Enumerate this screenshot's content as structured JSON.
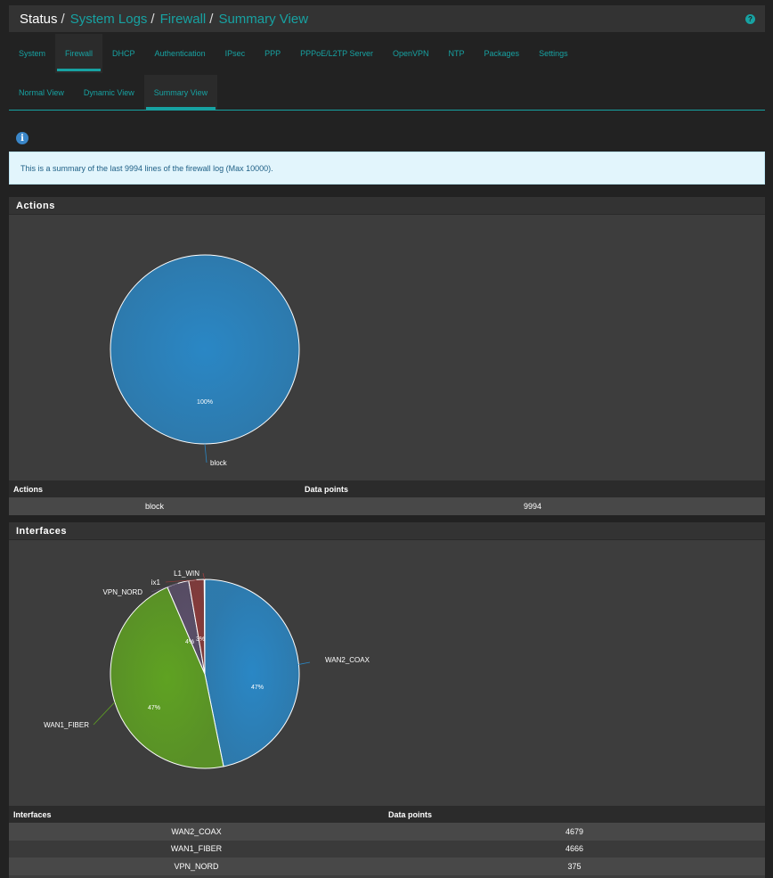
{
  "breadcrumb": {
    "root": "Status",
    "items": [
      "System Logs",
      "Firewall",
      "Summary View"
    ]
  },
  "tabs": [
    "System",
    "Firewall",
    "DHCP",
    "Authentication",
    "IPsec",
    "PPP",
    "PPPoE/L2TP Server",
    "OpenVPN",
    "NTP",
    "Packages",
    "Settings"
  ],
  "active_tab": "Firewall",
  "subtabs": [
    "Normal View",
    "Dynamic View",
    "Summary View"
  ],
  "active_subtab": "Summary View",
  "info_text": "This is a summary of the last 9994 lines of the firewall log (Max 10000).",
  "actions": {
    "title": "Actions",
    "table_headers": [
      "Actions",
      "Data points"
    ],
    "rows": [
      [
        "block",
        "9994"
      ]
    ]
  },
  "interfaces": {
    "title": "Interfaces",
    "table_headers": [
      "Interfaces",
      "Data points"
    ],
    "rows": [
      [
        "WAN2_COAX",
        "4679"
      ],
      [
        "WAN1_FIBER",
        "4666"
      ],
      [
        "VPN_NORD",
        "375"
      ]
    ]
  },
  "chart_data": [
    {
      "type": "pie",
      "categories": [
        "block"
      ],
      "values": [
        9994
      ],
      "slice_labels": [
        "100%"
      ],
      "colors": [
        "#2a87c5"
      ]
    },
    {
      "type": "pie",
      "categories": [
        "WAN2_COAX",
        "WAN1_FIBER",
        "VPN_NORD",
        "ix1",
        "L1_WIN"
      ],
      "values": [
        4679,
        4666,
        375,
        264,
        10
      ],
      "slice_labels": [
        "47%",
        "47%",
        "4%",
        "3%",
        ""
      ],
      "colors": [
        "#2a87c5",
        "#5fa222",
        "#5b4f6a",
        "#8a3b3b",
        "#a04040"
      ]
    }
  ]
}
